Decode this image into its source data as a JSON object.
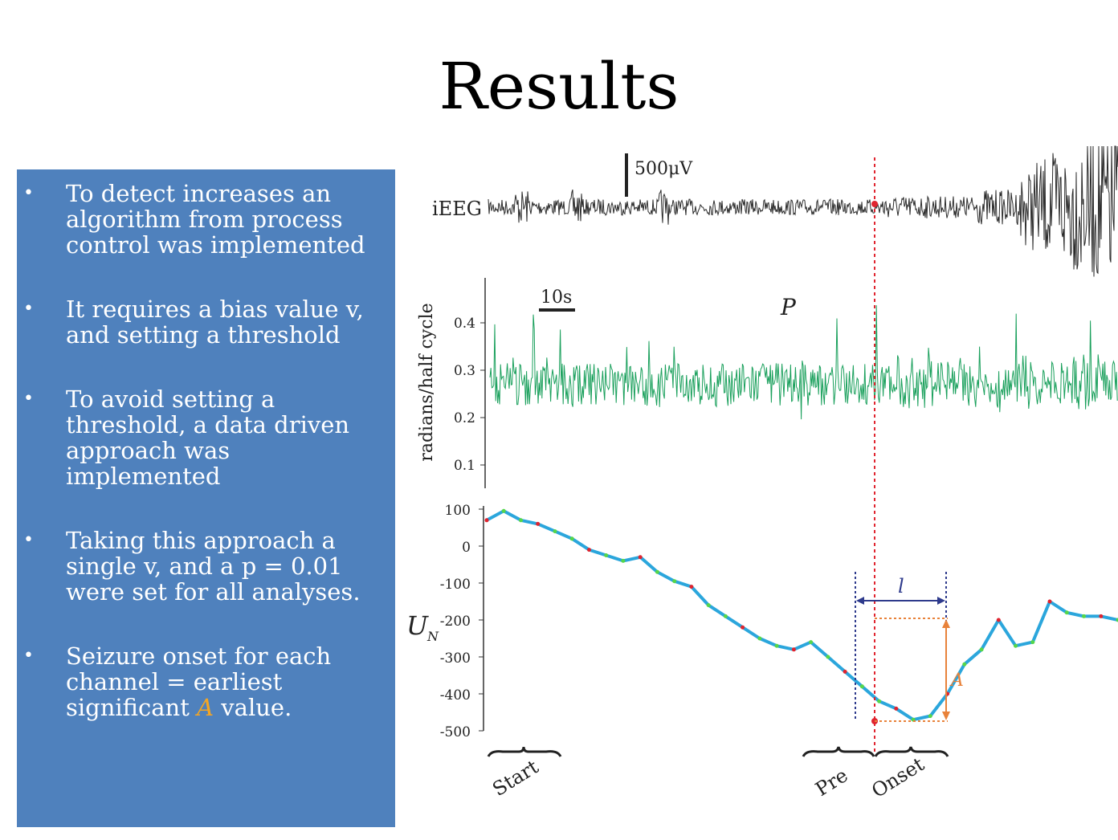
{
  "slide": {
    "title": "Results",
    "bullets": [
      {
        "pre": "To detect increases an algorithm from process control was implemented"
      },
      {
        "pre": "It requires a bias value v, and setting a threshold"
      },
      {
        "pre": "To avoid setting a threshold, a data driven approach was implemented"
      },
      {
        "pre": "Taking this approach a single v, and a p = 0.01 were set for all analyses."
      },
      {
        "pre": "Seizure onset for each channel = earliest significant ",
        "accent": "A",
        "post": " value."
      }
    ]
  },
  "figure": {
    "ieeg_label": "iEEG",
    "scale_voltage": "500μV",
    "scale_time": "10s",
    "p_label": "P",
    "p_ylabel": "radians/half cycle",
    "p_ticks": [
      "0.4",
      "0.3",
      "0.2",
      "0.1"
    ],
    "un_label": "U",
    "un_sub": "N",
    "un_ticks": [
      "100",
      "0",
      "-100",
      "-200",
      "-300",
      "-400",
      "-500"
    ],
    "l_label": "l",
    "a_label": "A",
    "brace_labels": [
      "Start",
      "Pre",
      "Onset"
    ],
    "colors": {
      "ieeg": "#2b2b2b",
      "p": "#1aa05c",
      "un": "#2ba6dc",
      "marker": "#e0242f",
      "l": "#2e3a8c",
      "a": "#e8823a"
    }
  },
  "chart_data": [
    {
      "type": "line",
      "title": "P",
      "ylabel": "radians/half cycle",
      "ylim": [
        0.05,
        0.5
      ],
      "yticks": [
        0.4,
        0.3,
        0.2,
        0.1
      ],
      "series": [
        {
          "values_description_mean": 0.27
        }
      ]
    },
    {
      "type": "line",
      "title": "",
      "ylabel": "UN",
      "ylim": [
        -500,
        100
      ],
      "yticks": [
        100,
        0,
        -100,
        -200,
        -300,
        -400,
        -500
      ],
      "series": [
        {
          "values": [
            70,
            95,
            70,
            60,
            40,
            20,
            -10,
            -25,
            -40,
            -30,
            -70,
            -95,
            -110,
            -160,
            -190,
            -220,
            -250,
            -270,
            -280,
            -260,
            -300,
            -340,
            -380,
            -420,
            -440,
            -470,
            -460,
            -400,
            -320,
            -280,
            -200,
            -270,
            -260,
            -150,
            -180,
            -190,
            -190,
            -200
          ]
        }
      ]
    }
  ]
}
